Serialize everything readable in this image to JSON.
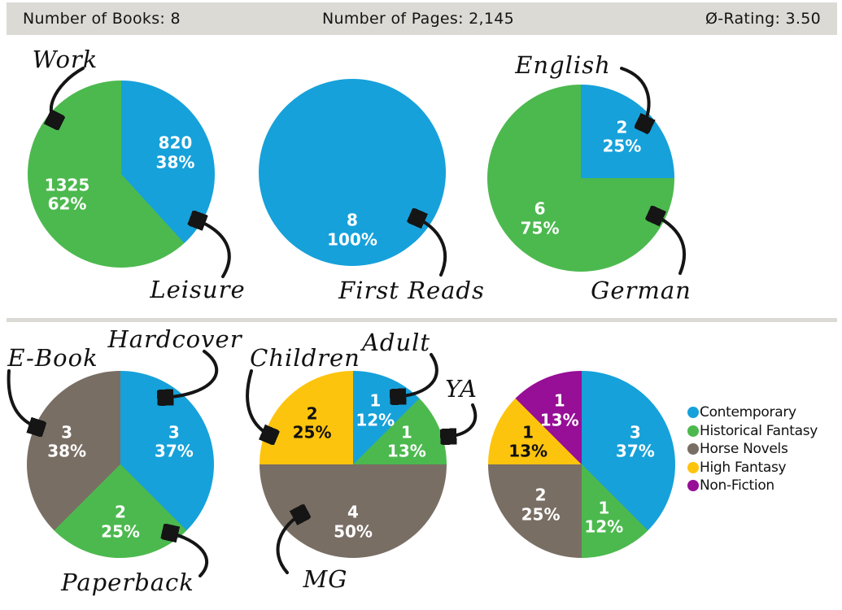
{
  "header": {
    "books": "Number of Books: 8",
    "pages": "Number of Pages: 2,145",
    "rating": "Ø-Rating: 3.50"
  },
  "chart_data": [
    {
      "type": "pie",
      "slices": [
        {
          "label": "Leisure",
          "value": 820,
          "pct": "38%",
          "color": "#16A1DA"
        },
        {
          "label": "Work",
          "value": 1325,
          "pct": "62%",
          "color": "#4CB94E"
        }
      ]
    },
    {
      "type": "pie",
      "slices": [
        {
          "label": "First Reads",
          "value": 8,
          "pct": "100%",
          "color": "#16A1DA"
        }
      ]
    },
    {
      "type": "pie",
      "slices": [
        {
          "label": "English",
          "value": 2,
          "pct": "25%",
          "color": "#16A1DA"
        },
        {
          "label": "German",
          "value": 6,
          "pct": "75%",
          "color": "#4CB94E"
        }
      ]
    },
    {
      "type": "pie",
      "slices": [
        {
          "label": "Hardcover",
          "value": 3,
          "pct": "37%",
          "color": "#16A1DA"
        },
        {
          "label": "Paperback",
          "value": 2,
          "pct": "25%",
          "color": "#4CB94E"
        },
        {
          "label": "E-Book",
          "value": 3,
          "pct": "38%",
          "color": "#796E64"
        }
      ]
    },
    {
      "type": "pie",
      "slices": [
        {
          "label": "Adult",
          "value": 1,
          "pct": "12%",
          "color": "#16A1DA"
        },
        {
          "label": "YA",
          "value": 1,
          "pct": "13%",
          "color": "#4CB94E"
        },
        {
          "label": "MG",
          "value": 4,
          "pct": "50%",
          "color": "#796E64"
        },
        {
          "label": "Children",
          "value": 2,
          "pct": "25%",
          "color": "#FDC40D"
        }
      ]
    },
    {
      "type": "pie",
      "legend": "right",
      "slices": [
        {
          "label": "Contemporary",
          "value": 3,
          "pct": "37%",
          "color": "#16A1DA"
        },
        {
          "label": "Historical Fantasy",
          "value": 1,
          "pct": "12%",
          "color": "#4CB94E"
        },
        {
          "label": "Horse Novels",
          "value": 2,
          "pct": "25%",
          "color": "#796E64"
        },
        {
          "label": "High Fantasy",
          "value": 1,
          "pct": "13%",
          "color": "#FDC40D"
        },
        {
          "label": "Non-Fiction",
          "value": 1,
          "pct": "13%",
          "color": "#970E97"
        }
      ]
    }
  ]
}
